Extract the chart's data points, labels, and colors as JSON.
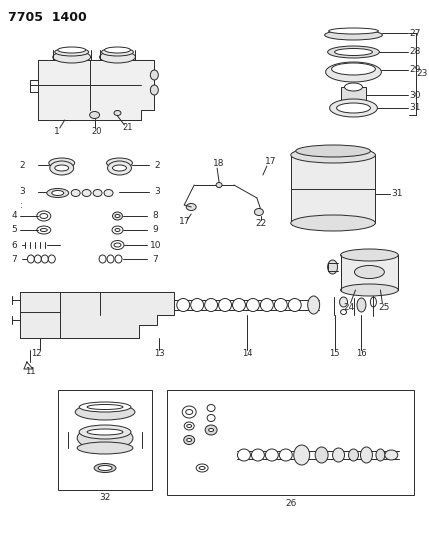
{
  "title": "7705  1400",
  "bg_color": "#ffffff",
  "fig_width": 4.29,
  "fig_height": 5.33,
  "dpi": 100,
  "line_color": "#2a2a2a",
  "lw": 0.7
}
